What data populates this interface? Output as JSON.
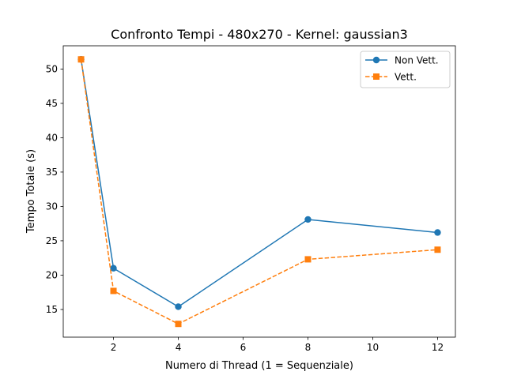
{
  "chart_data": {
    "type": "line",
    "title": "Confronto Tempi - 480x270 - Kernel: gaussian3",
    "xlabel": "Numero di Thread (1 = Sequenziale)",
    "ylabel": "Tempo Totale (s)",
    "x": [
      1,
      2,
      4,
      8,
      12
    ],
    "xlim": [
      0.45,
      12.55
    ],
    "ylim": [
      10.97,
      53.38
    ],
    "xticks": [
      2,
      4,
      6,
      8,
      10,
      12
    ],
    "yticks": [
      15,
      20,
      25,
      30,
      35,
      40,
      45,
      50
    ],
    "grid": false,
    "legend_position": "top-right",
    "series": [
      {
        "name": "Non Vett.",
        "values": [
          51.4,
          21.0,
          15.4,
          28.1,
          26.2
        ],
        "color": "#1f77b4",
        "linestyle": "solid",
        "marker": "circle"
      },
      {
        "name": "Vett.",
        "values": [
          51.4,
          17.7,
          12.9,
          22.3,
          23.7
        ],
        "color": "#ff7f0e",
        "linestyle": "dashed",
        "marker": "square"
      }
    ]
  }
}
